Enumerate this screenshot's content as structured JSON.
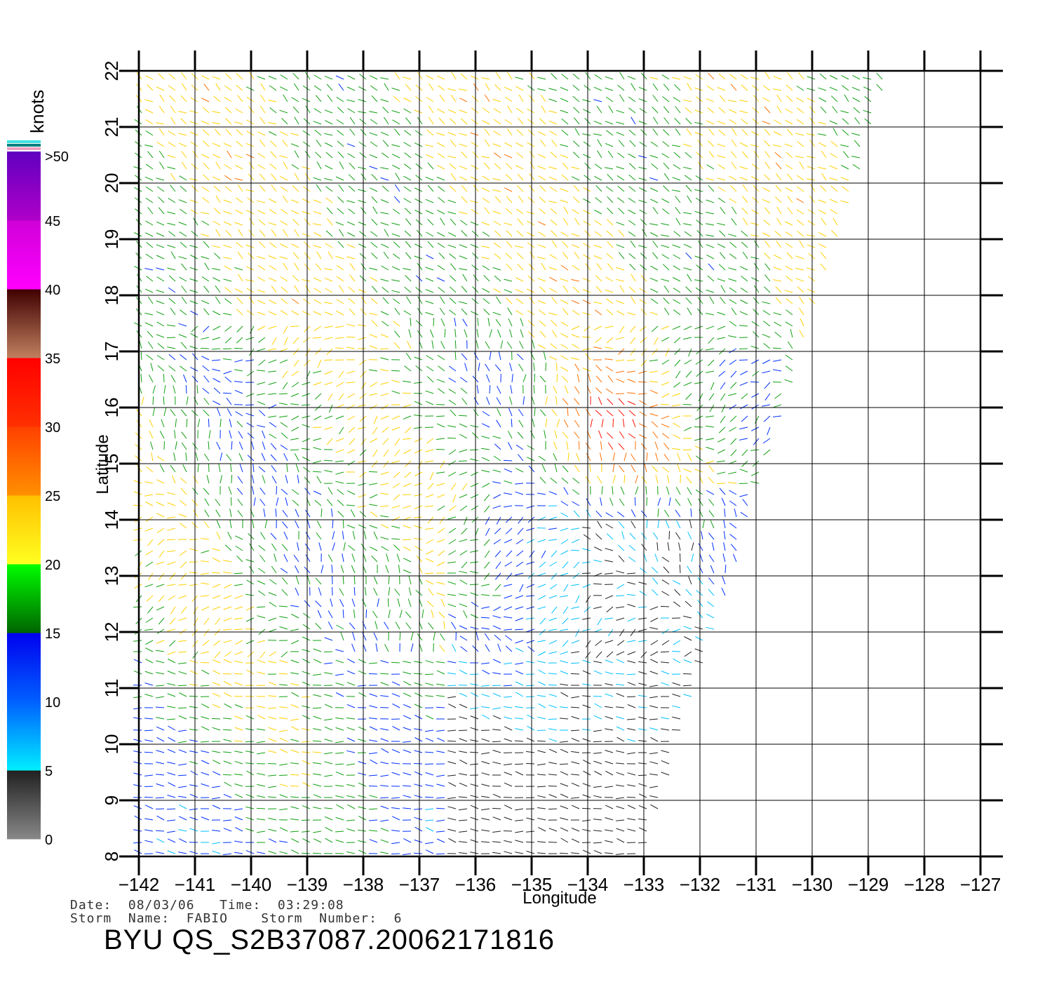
{
  "axes": {
    "xlabel": "Longitude",
    "ylabel": "Latitude",
    "lon_ticks": [
      "−142",
      "−141",
      "−140",
      "−139",
      "−138",
      "−137",
      "−136",
      "−135",
      "−134",
      "−133",
      "−132",
      "−131",
      "−130",
      "−129",
      "−128",
      "−127"
    ],
    "lat_ticks": [
      "8",
      "9",
      "10",
      "11",
      "12",
      "13",
      "14",
      "15",
      "16",
      "17",
      "18",
      "19",
      "20",
      "21",
      "22"
    ],
    "lon_range": [
      -142,
      -127
    ],
    "lat_range": [
      8,
      22
    ],
    "grid": true
  },
  "colorbar": {
    "unit": "knots",
    "labels": [
      ">50",
      "45",
      "40",
      "35",
      "30",
      "25",
      "20",
      "15",
      "10",
      "5",
      "0"
    ],
    "segments": [
      {
        "from": 0,
        "to": 5,
        "colors": [
          "#888888",
          "#202020"
        ]
      },
      {
        "from": 5,
        "to": 10,
        "colors": [
          "#00eeff",
          "#0060ff"
        ]
      },
      {
        "from": 10,
        "to": 15,
        "colors": [
          "#0060ff",
          "#0000ee"
        ]
      },
      {
        "from": 15,
        "to": 20,
        "colors": [
          "#006400",
          "#00ff00"
        ]
      },
      {
        "from": 20,
        "to": 25,
        "colors": [
          "#ffff20",
          "#ffc000"
        ]
      },
      {
        "from": 25,
        "to": 30,
        "colors": [
          "#ff9000",
          "#ff4000"
        ]
      },
      {
        "from": 30,
        "to": 35,
        "colors": [
          "#ff3000",
          "#ff0000"
        ]
      },
      {
        "from": 35,
        "to": 40,
        "colors": [
          "#c08060",
          "#400000"
        ]
      },
      {
        "from": 40,
        "to": 45,
        "colors": [
          "#ff00ff",
          "#d000d8"
        ]
      },
      {
        "from": 45,
        "to": 50,
        "colors": [
          "#b000c8",
          "#6000c0"
        ]
      }
    ]
  },
  "swath": {
    "edge_lon_at_lat8": -133.0,
    "edge_lon_at_lat22": -128.6
  },
  "wind_colors": {
    "speed_0_5": "#222222",
    "speed_5_10": "#00c0ff",
    "speed_10_15": "#0030ff",
    "speed_15_20": "#10a010",
    "speed_20_25": "#ffd000",
    "speed_25_30": "#ff7000",
    "speed_30_35": "#ff1000"
  },
  "footer": {
    "line1": "Date:  08/03/06   Time:  03:29:08",
    "line2": "Storm  Name:  FABIO    Storm  Number:  6",
    "product": "BYU  QS_S2B37087.20062171816"
  }
}
